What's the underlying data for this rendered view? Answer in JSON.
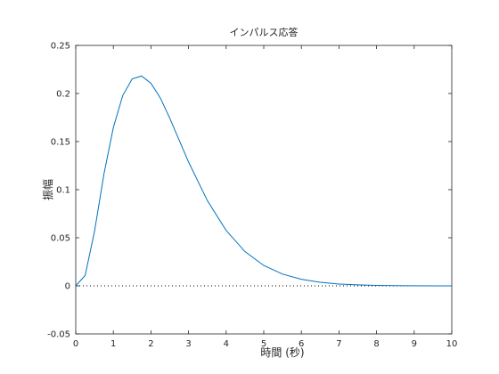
{
  "chart_data": {
    "type": "line",
    "title": "インパルス応答",
    "xlabel": "時間 (秒)",
    "ylabel": "振幅",
    "xlim": [
      0,
      10
    ],
    "ylim": [
      -0.05,
      0.25
    ],
    "xticks": [
      0,
      1,
      2,
      3,
      4,
      5,
      6,
      7,
      8,
      9,
      10
    ],
    "yticks": [
      -0.05,
      0,
      0.05,
      0.1,
      0.15,
      0.2,
      0.25
    ],
    "ytick_labels": [
      "-0.05",
      "0",
      "0.05",
      "0.1",
      "0.15",
      "0.2",
      "0.25"
    ],
    "grid": false,
    "series": [
      {
        "color": "#0072bd",
        "x": [
          0,
          0.25,
          0.5,
          0.75,
          1.0,
          1.25,
          1.5,
          1.75,
          2.0,
          2.25,
          2.5,
          2.75,
          3.0,
          3.5,
          4.0,
          4.5,
          5.0,
          5.5,
          6.0,
          6.5,
          7.0,
          7.5,
          8.0,
          8.5,
          9.0,
          9.5,
          10.0
        ],
        "y": [
          0,
          0.0108,
          0.0568,
          0.1162,
          0.1646,
          0.1979,
          0.2151,
          0.2182,
          0.2107,
          0.1953,
          0.1744,
          0.1516,
          0.1288,
          0.0886,
          0.0576,
          0.0356,
          0.0212,
          0.0122,
          0.0068,
          0.0037,
          0.0019,
          0.001,
          0.0005,
          0.0002,
          0.0001,
          5e-05,
          3e-05
        ]
      }
    ],
    "reference_line": {
      "y": 0,
      "style": "dotted",
      "color": "#000000"
    }
  }
}
